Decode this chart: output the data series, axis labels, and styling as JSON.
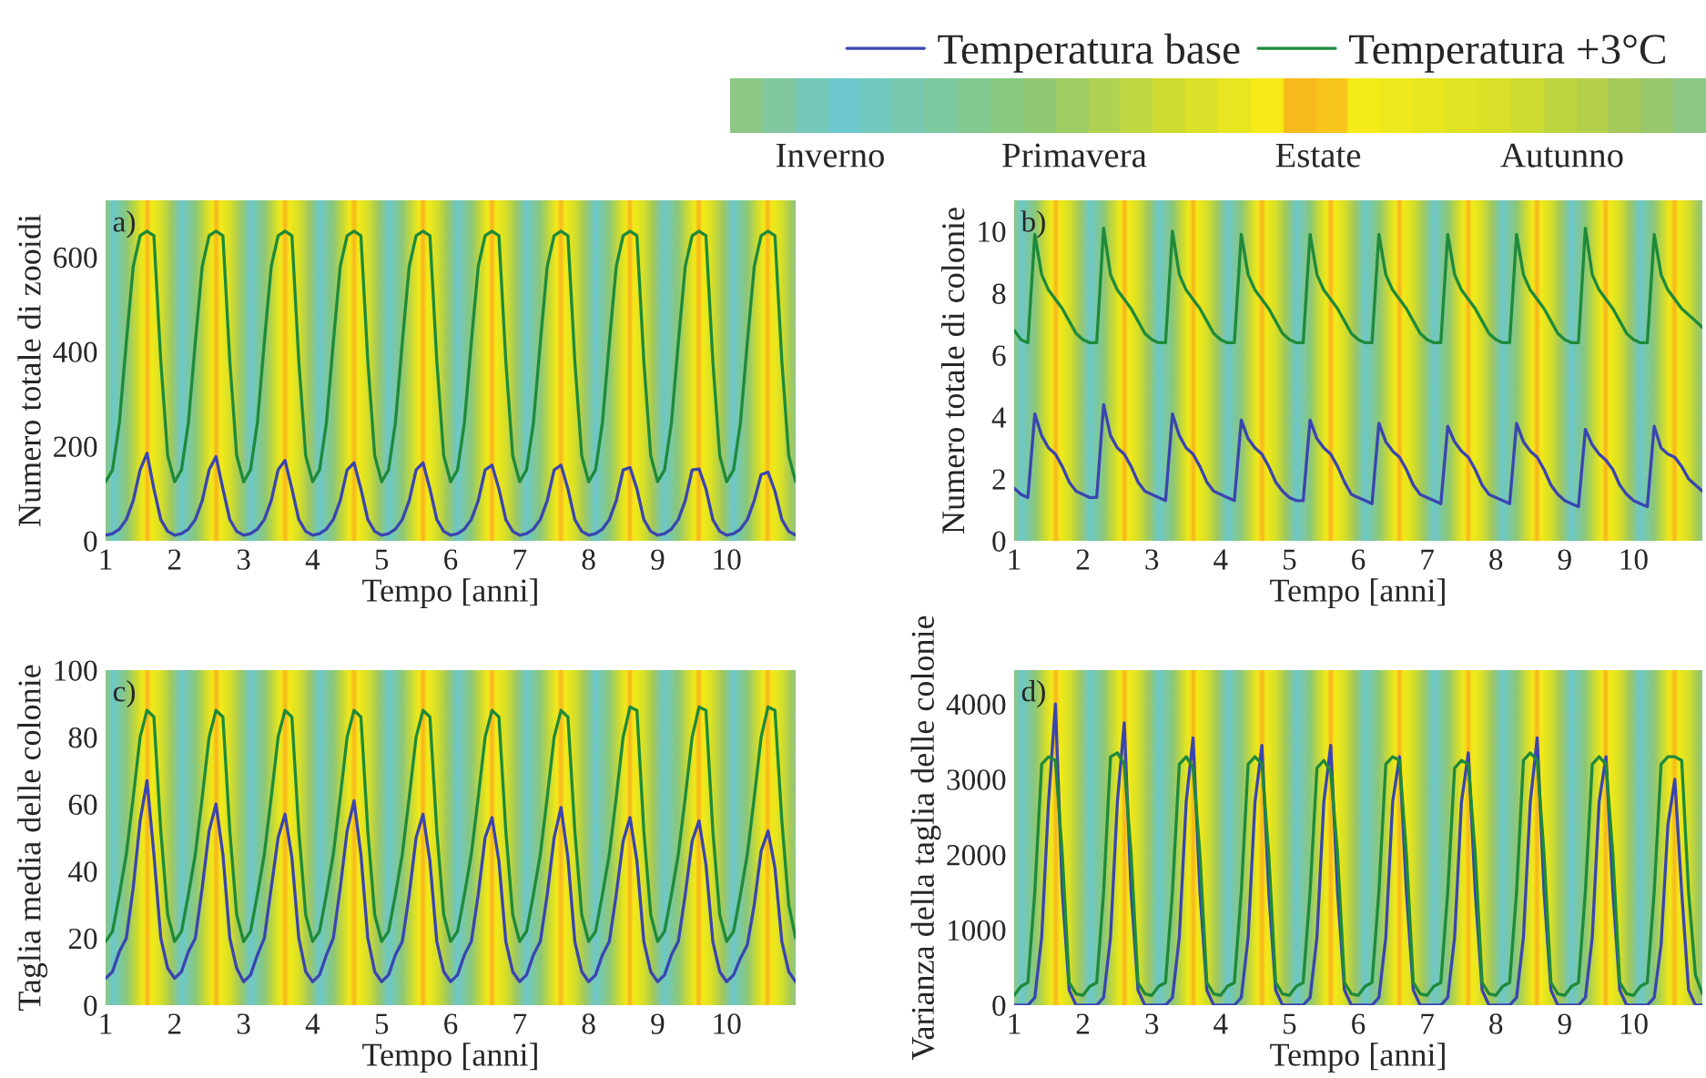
{
  "chart_data": [
    {
      "type": "line",
      "annotations": [
        "a)"
      ],
      "xlabel": "Tempo [anni]",
      "ylabel": "Numero totale di zooidi",
      "xlim": [
        1,
        11
      ],
      "xticks": [
        1,
        2,
        3,
        4,
        5,
        6,
        7,
        8,
        9,
        10
      ],
      "ylim": [
        0,
        720
      ],
      "yticks": [
        0,
        200,
        400,
        600
      ],
      "legend": "top",
      "x": [
        1.0,
        1.1,
        1.2,
        1.3,
        1.4,
        1.5,
        1.6,
        1.7,
        1.8,
        1.9,
        2.0,
        2.1,
        2.2,
        2.3,
        2.4,
        2.5,
        2.6,
        2.7,
        2.8,
        2.9,
        3.0,
        3.1,
        3.2,
        3.3,
        3.4,
        3.5,
        3.6,
        3.7,
        3.8,
        3.9,
        4.0,
        4.1,
        4.2,
        4.3,
        4.4,
        4.5,
        4.6,
        4.7,
        4.8,
        4.9,
        5.0,
        5.1,
        5.2,
        5.3,
        5.4,
        5.5,
        5.6,
        5.7,
        5.8,
        5.9,
        6.0,
        6.1,
        6.2,
        6.3,
        6.4,
        6.5,
        6.6,
        6.7,
        6.8,
        6.9,
        7.0,
        7.1,
        7.2,
        7.3,
        7.4,
        7.5,
        7.6,
        7.7,
        7.8,
        7.9,
        8.0,
        8.1,
        8.2,
        8.3,
        8.4,
        8.5,
        8.6,
        8.7,
        8.8,
        8.9,
        9.0,
        9.1,
        9.2,
        9.3,
        9.4,
        9.5,
        9.6,
        9.7,
        9.8,
        9.9,
        10.0,
        10.1,
        10.2,
        10.3,
        10.4,
        10.5,
        10.6,
        10.7,
        10.8,
        10.9,
        11.0
      ],
      "series": [
        {
          "name": "Temperatura base",
          "color": "#3a45b0",
          "values": [
            12,
            15,
            25,
            45,
            85,
            150,
            185,
            110,
            45,
            20,
            12,
            15,
            25,
            45,
            85,
            150,
            178,
            110,
            45,
            20,
            12,
            15,
            25,
            45,
            85,
            150,
            170,
            110,
            45,
            20,
            12,
            15,
            25,
            45,
            85,
            150,
            165,
            110,
            45,
            20,
            12,
            15,
            25,
            45,
            85,
            150,
            165,
            110,
            45,
            20,
            12,
            15,
            25,
            45,
            85,
            150,
            160,
            110,
            45,
            20,
            12,
            15,
            25,
            45,
            85,
            150,
            160,
            110,
            45,
            20,
            12,
            15,
            25,
            45,
            85,
            150,
            155,
            110,
            45,
            20,
            12,
            15,
            25,
            45,
            85,
            150,
            152,
            110,
            45,
            20,
            12,
            15,
            25,
            45,
            85,
            140,
            145,
            105,
            45,
            20,
            12
          ]
        },
        {
          "name": "Temperatura +3°C",
          "color": "#1e8a3a",
          "values": [
            125,
            150,
            250,
            420,
            580,
            645,
            655,
            645,
            380,
            180,
            125,
            150,
            250,
            420,
            580,
            645,
            655,
            645,
            380,
            180,
            125,
            150,
            250,
            420,
            580,
            645,
            655,
            645,
            380,
            180,
            125,
            150,
            250,
            420,
            580,
            645,
            655,
            645,
            380,
            180,
            125,
            150,
            250,
            420,
            580,
            645,
            655,
            645,
            380,
            180,
            125,
            150,
            250,
            420,
            580,
            645,
            655,
            645,
            380,
            180,
            125,
            150,
            250,
            420,
            580,
            645,
            655,
            645,
            380,
            180,
            125,
            150,
            250,
            420,
            580,
            645,
            655,
            645,
            380,
            180,
            125,
            150,
            250,
            420,
            580,
            645,
            655,
            645,
            380,
            180,
            125,
            150,
            250,
            420,
            580,
            645,
            655,
            645,
            380,
            180,
            125
          ]
        }
      ]
    },
    {
      "type": "line",
      "annotations": [
        "b)"
      ],
      "xlabel": "Tempo [anni]",
      "ylabel": "Numero totale di colonie",
      "xlim": [
        1,
        11
      ],
      "xticks": [
        1,
        2,
        3,
        4,
        5,
        6,
        7,
        8,
        9,
        10
      ],
      "ylim": [
        0,
        11
      ],
      "yticks": [
        0,
        2,
        4,
        6,
        8,
        10
      ],
      "x": [
        1.0,
        1.1,
        1.2,
        1.3,
        1.4,
        1.5,
        1.6,
        1.7,
        1.8,
        1.9,
        2.0,
        2.1,
        2.2,
        2.3,
        2.4,
        2.5,
        2.6,
        2.7,
        2.8,
        2.9,
        3.0,
        3.1,
        3.2,
        3.3,
        3.4,
        3.5,
        3.6,
        3.7,
        3.8,
        3.9,
        4.0,
        4.1,
        4.2,
        4.3,
        4.4,
        4.5,
        4.6,
        4.7,
        4.8,
        4.9,
        5.0,
        5.1,
        5.2,
        5.3,
        5.4,
        5.5,
        5.6,
        5.7,
        5.8,
        5.9,
        6.0,
        6.1,
        6.2,
        6.3,
        6.4,
        6.5,
        6.6,
        6.7,
        6.8,
        6.9,
        7.0,
        7.1,
        7.2,
        7.3,
        7.4,
        7.5,
        7.6,
        7.7,
        7.8,
        7.9,
        8.0,
        8.1,
        8.2,
        8.3,
        8.4,
        8.5,
        8.6,
        8.7,
        8.8,
        8.9,
        9.0,
        9.1,
        9.2,
        9.3,
        9.4,
        9.5,
        9.6,
        9.7,
        9.8,
        9.9,
        10.0,
        10.1,
        10.2,
        10.3,
        10.4,
        10.5,
        10.6,
        10.7,
        10.8,
        10.9,
        11.0
      ],
      "series": [
        {
          "color": "#3a45b0",
          "values": [
            1.7,
            1.5,
            1.4,
            4.1,
            3.4,
            3.0,
            2.8,
            2.4,
            1.9,
            1.6,
            1.5,
            1.4,
            1.4,
            4.4,
            3.4,
            3.0,
            2.8,
            2.4,
            1.9,
            1.6,
            1.5,
            1.4,
            1.3,
            4.1,
            3.4,
            3.0,
            2.8,
            2.4,
            1.9,
            1.6,
            1.5,
            1.4,
            1.3,
            3.9,
            3.3,
            3.0,
            2.8,
            2.4,
            1.9,
            1.6,
            1.4,
            1.3,
            1.3,
            3.9,
            3.3,
            3.0,
            2.8,
            2.4,
            1.9,
            1.5,
            1.4,
            1.3,
            1.2,
            3.8,
            3.2,
            2.9,
            2.7,
            2.3,
            1.8,
            1.5,
            1.4,
            1.3,
            1.2,
            3.7,
            3.2,
            2.9,
            2.7,
            2.3,
            1.8,
            1.5,
            1.4,
            1.3,
            1.2,
            3.8,
            3.2,
            2.9,
            2.7,
            2.3,
            1.8,
            1.5,
            1.3,
            1.2,
            1.1,
            3.6,
            3.1,
            2.8,
            2.6,
            2.3,
            1.8,
            1.5,
            1.3,
            1.2,
            1.1,
            3.7,
            3.0,
            2.8,
            2.7,
            2.4,
            2.0,
            1.8,
            1.6
          ]
        },
        {
          "color": "#1e8a3a",
          "values": [
            6.8,
            6.5,
            6.4,
            9.9,
            8.6,
            8.1,
            7.8,
            7.5,
            7.1,
            6.7,
            6.5,
            6.4,
            6.4,
            10.1,
            8.6,
            8.1,
            7.8,
            7.5,
            7.1,
            6.7,
            6.5,
            6.4,
            6.4,
            10.0,
            8.6,
            8.1,
            7.8,
            7.5,
            7.1,
            6.7,
            6.5,
            6.4,
            6.4,
            9.9,
            8.6,
            8.1,
            7.8,
            7.5,
            7.1,
            6.7,
            6.5,
            6.4,
            6.4,
            9.9,
            8.6,
            8.1,
            7.8,
            7.5,
            7.1,
            6.7,
            6.5,
            6.4,
            6.4,
            9.9,
            8.6,
            8.1,
            7.8,
            7.5,
            7.1,
            6.7,
            6.5,
            6.4,
            6.4,
            9.9,
            8.6,
            8.1,
            7.8,
            7.5,
            7.1,
            6.7,
            6.5,
            6.4,
            6.4,
            9.9,
            8.6,
            8.1,
            7.8,
            7.5,
            7.1,
            6.7,
            6.5,
            6.4,
            6.4,
            10.1,
            8.6,
            8.1,
            7.8,
            7.5,
            7.1,
            6.7,
            6.5,
            6.4,
            6.4,
            9.9,
            8.6,
            8.1,
            7.8,
            7.5,
            7.3,
            7.1,
            6.9
          ]
        }
      ]
    },
    {
      "type": "line",
      "annotations": [
        "c)"
      ],
      "xlabel": "Tempo [anni]",
      "ylabel": "Taglia media delle colonie",
      "xlim": [
        1,
        11
      ],
      "xticks": [
        1,
        2,
        3,
        4,
        5,
        6,
        7,
        8,
        9,
        10
      ],
      "ylim": [
        0,
        100
      ],
      "yticks": [
        0,
        20,
        40,
        60,
        80,
        100
      ],
      "x": [
        1.0,
        1.1,
        1.2,
        1.3,
        1.4,
        1.5,
        1.6,
        1.7,
        1.8,
        1.9,
        2.0,
        2.1,
        2.2,
        2.3,
        2.4,
        2.5,
        2.6,
        2.7,
        2.8,
        2.9,
        3.0,
        3.1,
        3.2,
        3.3,
        3.4,
        3.5,
        3.6,
        3.7,
        3.8,
        3.9,
        4.0,
        4.1,
        4.2,
        4.3,
        4.4,
        4.5,
        4.6,
        4.7,
        4.8,
        4.9,
        5.0,
        5.1,
        5.2,
        5.3,
        5.4,
        5.5,
        5.6,
        5.7,
        5.8,
        5.9,
        6.0,
        6.1,
        6.2,
        6.3,
        6.4,
        6.5,
        6.6,
        6.7,
        6.8,
        6.9,
        7.0,
        7.1,
        7.2,
        7.3,
        7.4,
        7.5,
        7.6,
        7.7,
        7.8,
        7.9,
        8.0,
        8.1,
        8.2,
        8.3,
        8.4,
        8.5,
        8.6,
        8.7,
        8.8,
        8.9,
        9.0,
        9.1,
        9.2,
        9.3,
        9.4,
        9.5,
        9.6,
        9.7,
        9.8,
        9.9,
        10.0,
        10.1,
        10.2,
        10.3,
        10.4,
        10.5,
        10.6,
        10.7,
        10.8,
        10.9,
        11.0
      ],
      "series": [
        {
          "color": "#3a45b0",
          "values": [
            8,
            10,
            16,
            20,
            35,
            55,
            67,
            45,
            20,
            11,
            8,
            10,
            16,
            20,
            35,
            52,
            60,
            45,
            20,
            11,
            7,
            9,
            15,
            20,
            35,
            50,
            57,
            44,
            20,
            10,
            7,
            9,
            15,
            20,
            35,
            52,
            61,
            45,
            20,
            10,
            7,
            9,
            15,
            19,
            33,
            50,
            57,
            43,
            19,
            10,
            7,
            9,
            15,
            19,
            33,
            50,
            56,
            43,
            19,
            10,
            7,
            9,
            15,
            19,
            33,
            50,
            59,
            44,
            19,
            10,
            7,
            9,
            15,
            19,
            33,
            49,
            56,
            43,
            19,
            10,
            7,
            9,
            15,
            19,
            33,
            49,
            55,
            42,
            19,
            10,
            7,
            9,
            14,
            18,
            30,
            46,
            52,
            41,
            19,
            10,
            7
          ]
        },
        {
          "color": "#1e8a3a",
          "values": [
            19,
            22,
            33,
            45,
            62,
            80,
            88,
            86,
            52,
            27,
            19,
            22,
            33,
            45,
            62,
            80,
            88,
            86,
            52,
            27,
            19,
            22,
            33,
            45,
            62,
            80,
            88,
            86,
            52,
            27,
            19,
            22,
            33,
            45,
            62,
            80,
            88,
            86,
            52,
            27,
            19,
            22,
            33,
            45,
            62,
            80,
            88,
            86,
            52,
            27,
            19,
            22,
            33,
            45,
            62,
            80,
            88,
            86,
            52,
            27,
            19,
            22,
            33,
            45,
            62,
            80,
            88,
            86,
            52,
            27,
            19,
            22,
            33,
            45,
            62,
            80,
            89,
            88,
            52,
            27,
            19,
            22,
            33,
            45,
            62,
            80,
            89,
            88,
            52,
            27,
            19,
            22,
            33,
            45,
            62,
            80,
            89,
            88,
            55,
            30,
            20
          ]
        }
      ]
    },
    {
      "type": "line",
      "annotations": [
        "d)"
      ],
      "xlabel": "Tempo [anni]",
      "ylabel": "Varianza della taglia delle colonie",
      "xlim": [
        1,
        11
      ],
      "xticks": [
        1,
        2,
        3,
        4,
        5,
        6,
        7,
        8,
        9,
        10
      ],
      "ylim": [
        0,
        4450
      ],
      "yticks": [
        0,
        1000,
        2000,
        3000,
        4000
      ],
      "x": [
        1.0,
        1.1,
        1.2,
        1.3,
        1.4,
        1.5,
        1.6,
        1.7,
        1.8,
        1.9,
        2.0,
        2.1,
        2.2,
        2.3,
        2.4,
        2.5,
        2.6,
        2.7,
        2.8,
        2.9,
        3.0,
        3.1,
        3.2,
        3.3,
        3.4,
        3.5,
        3.6,
        3.7,
        3.8,
        3.9,
        4.0,
        4.1,
        4.2,
        4.3,
        4.4,
        4.5,
        4.6,
        4.7,
        4.8,
        4.9,
        5.0,
        5.1,
        5.2,
        5.3,
        5.4,
        5.5,
        5.6,
        5.7,
        5.8,
        5.9,
        6.0,
        6.1,
        6.2,
        6.3,
        6.4,
        6.5,
        6.6,
        6.7,
        6.8,
        6.9,
        7.0,
        7.1,
        7.2,
        7.3,
        7.4,
        7.5,
        7.6,
        7.7,
        7.8,
        7.9,
        8.0,
        8.1,
        8.2,
        8.3,
        8.4,
        8.5,
        8.6,
        8.7,
        8.8,
        8.9,
        9.0,
        9.1,
        9.2,
        9.3,
        9.4,
        9.5,
        9.6,
        9.7,
        9.8,
        9.9,
        10.0,
        10.1,
        10.2,
        10.3,
        10.4,
        10.5,
        10.6,
        10.7,
        10.8,
        10.9,
        11.0
      ],
      "series": [
        {
          "color": "#3a45b0",
          "values": [
            0,
            0,
            0,
            100,
            900,
            2700,
            4000,
            1500,
            200,
            0,
            0,
            0,
            0,
            100,
            900,
            2700,
            3750,
            1500,
            200,
            0,
            0,
            0,
            0,
            100,
            900,
            2700,
            3550,
            1500,
            200,
            0,
            0,
            0,
            0,
            100,
            900,
            2700,
            3450,
            1500,
            200,
            0,
            0,
            0,
            0,
            100,
            900,
            2700,
            3450,
            1500,
            200,
            0,
            0,
            0,
            0,
            100,
            900,
            2700,
            3300,
            1500,
            200,
            0,
            0,
            0,
            0,
            100,
            900,
            2700,
            3350,
            1500,
            200,
            0,
            0,
            0,
            0,
            100,
            900,
            2700,
            3550,
            1500,
            200,
            0,
            0,
            0,
            0,
            100,
            900,
            2700,
            3300,
            1500,
            200,
            0,
            0,
            0,
            0,
            100,
            800,
            2400,
            3000,
            1500,
            200,
            0,
            0
          ]
        },
        {
          "color": "#1e8a3a",
          "values": [
            130,
            250,
            300,
            1500,
            3200,
            3300,
            3250,
            2000,
            300,
            150,
            130,
            250,
            300,
            1500,
            3300,
            3350,
            3200,
            2000,
            300,
            150,
            130,
            250,
            300,
            1500,
            3200,
            3300,
            3150,
            2000,
            300,
            150,
            130,
            250,
            300,
            1500,
            3200,
            3300,
            3200,
            2000,
            300,
            150,
            130,
            250,
            300,
            1500,
            3150,
            3250,
            3100,
            2000,
            300,
            150,
            130,
            250,
            300,
            1500,
            3200,
            3300,
            3250,
            2000,
            300,
            150,
            130,
            250,
            300,
            1500,
            3150,
            3250,
            3200,
            2000,
            300,
            150,
            130,
            250,
            300,
            1500,
            3250,
            3350,
            3250,
            2000,
            300,
            150,
            130,
            250,
            300,
            1500,
            3200,
            3300,
            3200,
            2000,
            300,
            150,
            130,
            250,
            300,
            1500,
            3200,
            3300,
            3300,
            3250,
            1500,
            400,
            150
          ]
        }
      ]
    },
    {
      "type": "other",
      "annotations": [
        "Inverno",
        "Primavera",
        "Estate",
        "Autunno"
      ]
    }
  ]
}
